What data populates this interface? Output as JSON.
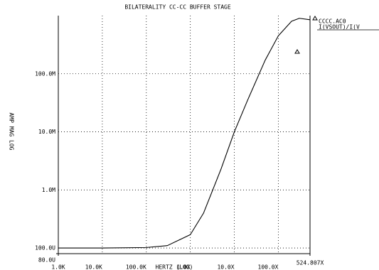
{
  "chart_data": {
    "type": "line",
    "title": "BILATERALITY  CC-CC BUFFER STAGE",
    "xlabel": "HERTZ (LOG)",
    "ylabel": "AMP MAG LOG",
    "xscale": "log",
    "yscale": "log",
    "grid": true,
    "legend": "top right",
    "xlim": [
      1000,
      524807000
    ],
    "ylim": [
      8e-05,
      1
    ],
    "xticks": [
      {
        "value": 1000,
        "label": "1.0K"
      },
      {
        "value": 10000,
        "label": "10.0K"
      },
      {
        "value": 100000,
        "label": "100.0K"
      },
      {
        "value": 1000000,
        "label": "1.0X"
      },
      {
        "value": 10000000,
        "label": "10.0X"
      },
      {
        "value": 100000000,
        "label": "100.0X"
      },
      {
        "value": 524807000,
        "label": "524.807X"
      }
    ],
    "yticks": [
      {
        "value": 8e-05,
        "label": "80.0U"
      },
      {
        "value": 0.0001,
        "label": "100.0U"
      },
      {
        "value": 0.001,
        "label": "1.0M"
      },
      {
        "value": 0.01,
        "label": "10.0M"
      },
      {
        "value": 0.1,
        "label": "100.0M"
      }
    ],
    "x": [
      1000,
      10000,
      100000,
      300000,
      1000000,
      2000000,
      5000000,
      10000000,
      20000000,
      50000000,
      100000000,
      200000000,
      300000000,
      524807000
    ],
    "series": [
      {
        "name": "CCCC.AC0",
        "label2": "I(VSOUT)/I(V",
        "color": "#000000",
        "values": [
          0.0001,
          0.0001,
          0.000102,
          0.00011,
          0.00017,
          0.0004,
          0.0023,
          0.01,
          0.035,
          0.17,
          0.45,
          0.8,
          0.9,
          0.85
        ]
      }
    ]
  }
}
